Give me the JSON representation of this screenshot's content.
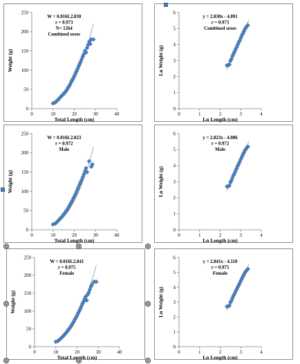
{
  "colors": {
    "marker": "#4a7ebb",
    "trend": "#a0a0a0",
    "axis": "#808080"
  },
  "icons": {
    "square_handle": "square-selection-handle-icon",
    "circle_handle": "circle-selection-handle-icon"
  },
  "chart_data": [
    {
      "type": "scatter",
      "title": "",
      "xlabel": "Total Length (cm)",
      "ylabel": "Weight (g)",
      "xlim": [
        0,
        40
      ],
      "ylim": [
        0,
        250
      ],
      "xticks": [
        "0",
        "10",
        "20",
        "30",
        "40"
      ],
      "yticks": [
        "0",
        "50",
        "100",
        "150",
        "200",
        "250"
      ],
      "annotation": [
        "W = 0.016L2.830",
        "r = 0.973",
        "N= 1264",
        "Combined sexes"
      ],
      "model": {
        "kind": "power",
        "a": 0.016,
        "b": 2.83,
        "xmin": 9.5,
        "xmax": 29
      },
      "x": [
        10,
        11,
        11.5,
        12,
        12.5,
        13,
        13.5,
        14,
        14.5,
        15,
        15.5,
        16,
        16.5,
        17,
        17.5,
        18,
        18.5,
        19,
        19.5,
        20,
        20.5,
        21,
        21.5,
        22,
        22.5,
        23,
        23.5,
        24,
        24.5,
        25,
        25.5,
        26,
        26.5,
        27,
        27.5,
        28,
        29
      ],
      "y": [
        14,
        16,
        19,
        21,
        24,
        27,
        30,
        33,
        36,
        38,
        42,
        45,
        49,
        54,
        58,
        63,
        69,
        74,
        79,
        85,
        91,
        97,
        103,
        110,
        116,
        122,
        129,
        136,
        142,
        150,
        146,
        158,
        166,
        174,
        168,
        180,
        180
      ]
    },
    {
      "type": "scatter",
      "title": "",
      "xlabel": "Ln Length (cm)",
      "ylabel": "Ln Weight (g)",
      "xlim": [
        0,
        4
      ],
      "ylim": [
        0,
        6
      ],
      "xticks": [
        "0",
        "1",
        "2",
        "3",
        "4"
      ],
      "yticks": [
        "0",
        "1",
        "2",
        "3",
        "4",
        "5",
        "6"
      ],
      "annotation": [
        "y = 2.830x - 4.091",
        "r = 0.973",
        "Combined sexes"
      ],
      "model": {
        "kind": "linear",
        "a": 2.83,
        "b": -4.091,
        "xmin": 2.3,
        "xmax": 3.4
      },
      "x": [
        2.33,
        2.4,
        2.45,
        2.5,
        2.55,
        2.6,
        2.65,
        2.7,
        2.75,
        2.8,
        2.85,
        2.9,
        2.95,
        3.0,
        3.05,
        3.1,
        3.15,
        3.2,
        3.25,
        3.3,
        3.35
      ],
      "y": [
        2.7,
        2.72,
        2.75,
        2.98,
        3.1,
        3.28,
        3.42,
        3.55,
        3.7,
        3.83,
        3.98,
        4.12,
        4.25,
        4.4,
        4.55,
        4.68,
        4.81,
        4.95,
        5.05,
        5.15,
        5.2
      ]
    },
    {
      "type": "scatter",
      "title": "",
      "xlabel": "Total Length (cm)",
      "ylabel": "Weight (g)",
      "xlim": [
        0,
        40
      ],
      "ylim": [
        0,
        250
      ],
      "xticks": [
        "0",
        "10",
        "20",
        "30",
        "40"
      ],
      "yticks": [
        "0",
        "50",
        "100",
        "150",
        "200",
        "250"
      ],
      "annotation": [
        "W = 0.016L2.823",
        "r = 0.972",
        "Male"
      ],
      "model": {
        "kind": "power",
        "a": 0.016,
        "b": 2.823,
        "xmin": 9.5,
        "xmax": 29
      },
      "x": [
        10,
        11,
        11.5,
        12,
        12.5,
        13,
        13.5,
        14,
        14.5,
        15,
        15.5,
        16,
        16.5,
        17,
        17.5,
        18,
        18.5,
        19,
        19.5,
        20,
        20.5,
        21,
        21.5,
        22,
        22.5,
        23,
        23.5,
        24,
        24.5,
        25,
        25.5,
        26,
        27,
        28,
        28.5
      ],
      "y": [
        14,
        16,
        18,
        21,
        24,
        27,
        30,
        33,
        36,
        40,
        43,
        47,
        51,
        55,
        60,
        65,
        70,
        75,
        81,
        86,
        92,
        98,
        105,
        111,
        118,
        124,
        130,
        137,
        144,
        152,
        160,
        150,
        178,
        164,
        170
      ]
    },
    {
      "type": "scatter",
      "title": "",
      "xlabel": "Ln Length (cm)",
      "ylabel": "Ln Weight (g)",
      "xlim": [
        0,
        4
      ],
      "ylim": [
        0,
        6
      ],
      "xticks": [
        "0",
        "1",
        "2",
        "3",
        "4"
      ],
      "yticks": [
        "0",
        "1",
        "2",
        "3",
        "4",
        "5",
        "6"
      ],
      "annotation": [
        "y = 2.823x - 4.086",
        "r = 0.972",
        "Male"
      ],
      "model": {
        "kind": "linear",
        "a": 2.823,
        "b": -4.086,
        "xmin": 2.3,
        "xmax": 3.4
      },
      "x": [
        2.33,
        2.4,
        2.45,
        2.5,
        2.55,
        2.6,
        2.65,
        2.7,
        2.75,
        2.8,
        2.85,
        2.9,
        2.95,
        3.0,
        3.05,
        3.1,
        3.15,
        3.2,
        3.25,
        3.3,
        3.35
      ],
      "y": [
        2.7,
        2.71,
        2.75,
        2.96,
        3.08,
        3.25,
        3.4,
        3.53,
        3.68,
        3.82,
        3.97,
        4.1,
        4.24,
        4.39,
        4.53,
        4.67,
        4.8,
        4.93,
        5.03,
        5.13,
        5.18
      ]
    },
    {
      "type": "scatter",
      "title": "",
      "xlabel": "Total Length (cm)",
      "ylabel": "Weight (g)",
      "xlim": [
        0,
        40
      ],
      "ylim": [
        0,
        250
      ],
      "xticks": [
        "0",
        "10",
        "20",
        "30",
        "40"
      ],
      "yticks": [
        "0",
        "50",
        "100",
        "150",
        "200",
        "250"
      ],
      "annotation": [
        "W = 0.016L2.841",
        "r = 0.975",
        "Female"
      ],
      "model": {
        "kind": "power",
        "a": 0.016,
        "b": 2.841,
        "xmin": 9.5,
        "xmax": 29
      },
      "x": [
        10,
        11,
        11.5,
        12,
        12.5,
        13,
        13.5,
        14,
        14.5,
        15,
        15.5,
        16,
        16.5,
        17,
        17.5,
        18,
        18.5,
        19,
        19.5,
        20,
        20.5,
        21,
        21.5,
        22,
        22.5,
        23,
        23.5,
        24,
        24.5,
        25,
        25.5,
        26,
        26.5,
        27,
        28,
        29
      ],
      "y": [
        14,
        16,
        19,
        21,
        24,
        27,
        30,
        33,
        37,
        40,
        44,
        48,
        52,
        56,
        61,
        66,
        71,
        77,
        82,
        88,
        94,
        100,
        106,
        113,
        120,
        126,
        133,
        140,
        130,
        146,
        152,
        160,
        168,
        174,
        182,
        182
      ]
    },
    {
      "type": "scatter",
      "title": "",
      "xlabel": "Ln Length (cm)",
      "ylabel": "Ln Weight (g)",
      "xlim": [
        0,
        4
      ],
      "ylim": [
        0,
        6
      ],
      "xticks": [
        "0",
        "1",
        "2",
        "3",
        "4"
      ],
      "yticks": [
        "0",
        "1",
        "2",
        "3",
        "4",
        "5",
        "6"
      ],
      "annotation": [
        "y = 2.841x - 4.110",
        "r = 0.975",
        "Female"
      ],
      "model": {
        "kind": "linear",
        "a": 2.841,
        "b": -4.11,
        "xmin": 2.3,
        "xmax": 3.4
      },
      "x": [
        2.33,
        2.4,
        2.45,
        2.5,
        2.55,
        2.6,
        2.65,
        2.7,
        2.75,
        2.8,
        2.85,
        2.9,
        2.95,
        3.0,
        3.05,
        3.1,
        3.15,
        3.2,
        3.25,
        3.3,
        3.35
      ],
      "y": [
        2.7,
        2.72,
        2.76,
        2.98,
        3.1,
        3.28,
        3.43,
        3.56,
        3.72,
        3.85,
        3.99,
        4.13,
        4.27,
        4.42,
        4.56,
        4.7,
        4.83,
        4.97,
        5.07,
        5.16,
        5.22
      ]
    }
  ]
}
